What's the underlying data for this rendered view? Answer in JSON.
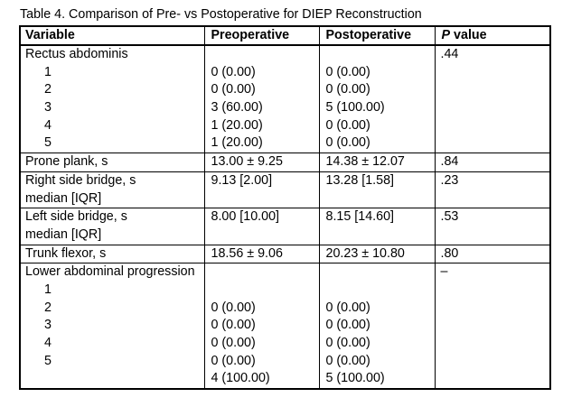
{
  "title": "Table 4. Comparison of Pre- vs Postoperative for DIEP Reconstruction",
  "colors": {
    "text": "#000000",
    "border": "#000000",
    "background": "#ffffff"
  },
  "table": {
    "headers": {
      "variable": "Variable",
      "preoperative": "Preoperative",
      "postoperative": "Postoperative",
      "p_letter": "P",
      "p_word": "value"
    },
    "rectus": {
      "heading": "Rectus abdominis",
      "p": ".44",
      "items": [
        {
          "label": "1",
          "pre": "0 (0.00)",
          "post": "0 (0.00)"
        },
        {
          "label": "2",
          "pre": "0 (0.00)",
          "post": "0 (0.00)"
        },
        {
          "label": "3",
          "pre": "3 (60.00)",
          "post": "5 (100.00)"
        },
        {
          "label": "4",
          "pre": "1 (20.00)",
          "post": "0 (0.00)"
        },
        {
          "label": "5",
          "pre": "1 (20.00)",
          "post": "0 (0.00)"
        }
      ]
    },
    "prone_plank": {
      "label": "Prone plank, s",
      "pre": "13.00 ± 9.25",
      "post": "14.38 ± 12.07",
      "p": ".84"
    },
    "right_side_bridge": {
      "label": "Right side bridge, s",
      "label2": "median [IQR]",
      "pre": "9.13 [2.00]",
      "post": "13.28 [1.58]",
      "p": ".23"
    },
    "left_side_bridge": {
      "label": "Left side bridge, s",
      "label2": "median [IQR]",
      "pre": "8.00 [10.00]",
      "post": "8.15 [14.60]",
      "p": ".53"
    },
    "trunk_flexor": {
      "label": "Trunk flexor, s",
      "pre": "18.56 ± 9.06",
      "post": "20.23 ± 10.80",
      "p": ".80"
    },
    "lower_abdominal": {
      "heading": "Lower abdominal progression",
      "p": "–",
      "items": [
        {
          "label": "1",
          "pre": "",
          "post": ""
        },
        {
          "label": "2",
          "pre": "0 (0.00)",
          "post": "0 (0.00)"
        },
        {
          "label": "3",
          "pre": "0 (0.00)",
          "post": "0 (0.00)"
        },
        {
          "label": "4",
          "pre": "0 (0.00)",
          "post": "0 (0.00)"
        },
        {
          "label": "5",
          "pre": "0 (0.00)",
          "post": "0 (0.00)"
        },
        {
          "label": "",
          "pre": "4 (100.00)",
          "post": "5 (100.00)"
        }
      ]
    }
  }
}
